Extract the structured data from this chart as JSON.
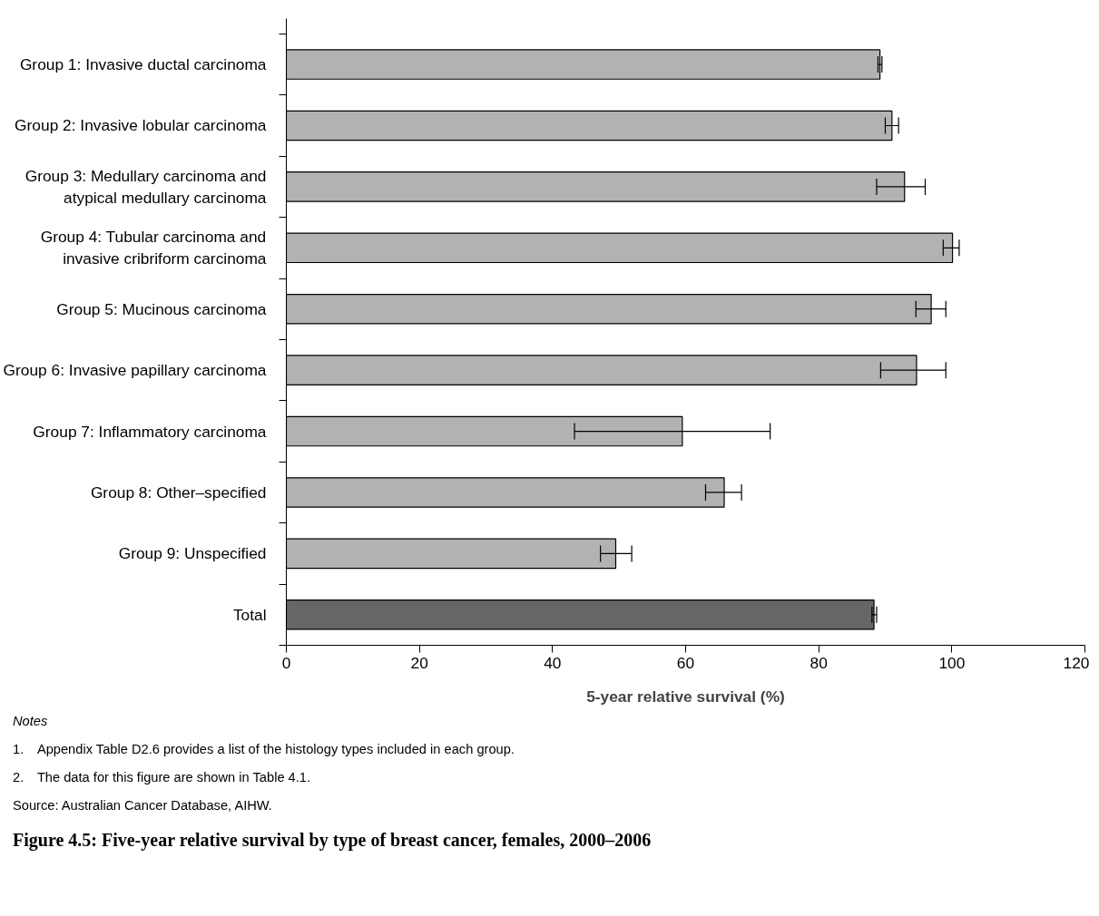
{
  "chart_data": {
    "type": "bar",
    "orientation": "horizontal",
    "title": "Figure 4.5: Five-year relative survival by type of breast cancer, females, 2000–2006",
    "xlabel": "5-year relative survival (%)",
    "categories": [
      "Group 1: Invasive ductal carcinoma",
      "Group 2: Invasive lobular carcinoma",
      "Group 3: Medullary carcinoma and\natypical medullary carcinoma",
      "Group 4: Tubular carcinoma and\ninvasive cribriform carcinoma",
      "Group 5: Mucinous carcinoma",
      "Group 6: Invasive papillary carcinoma",
      "Group 7: Inflammatory carcinoma",
      "Group 8: Other–specified",
      "Group 9: Unspecified",
      "Total"
    ],
    "values": [
      89.2,
      91.0,
      92.9,
      100.1,
      96.9,
      94.7,
      59.5,
      65.8,
      49.5,
      88.3
    ],
    "errors": [
      [
        88.9,
        89.5
      ],
      [
        90.0,
        92.0
      ],
      [
        88.7,
        96.0
      ],
      [
        98.7,
        101.1
      ],
      [
        94.6,
        99.1
      ],
      [
        89.3,
        99.1
      ],
      [
        43.3,
        72.7
      ],
      [
        63.0,
        68.4
      ],
      [
        47.2,
        51.9
      ],
      [
        88.0,
        88.7
      ]
    ],
    "colors": [
      "#b2b2b2",
      "#b2b2b2",
      "#b2b2b2",
      "#b2b2b2",
      "#b2b2b2",
      "#b2b2b2",
      "#b2b2b2",
      "#b2b2b2",
      "#b2b2b2",
      "#666666"
    ],
    "xlim": [
      0,
      120
    ],
    "xticks": [
      0,
      20,
      40,
      60,
      80,
      100,
      120
    ],
    "grid": false,
    "annotations": [
      "Notes",
      "1. Appendix Table D2.6 provides a list of the histology types included in each group.",
      "2. The data for this figure are shown in Table 4.1.",
      "Source: Australian Cancer Database, AIHW."
    ]
  }
}
